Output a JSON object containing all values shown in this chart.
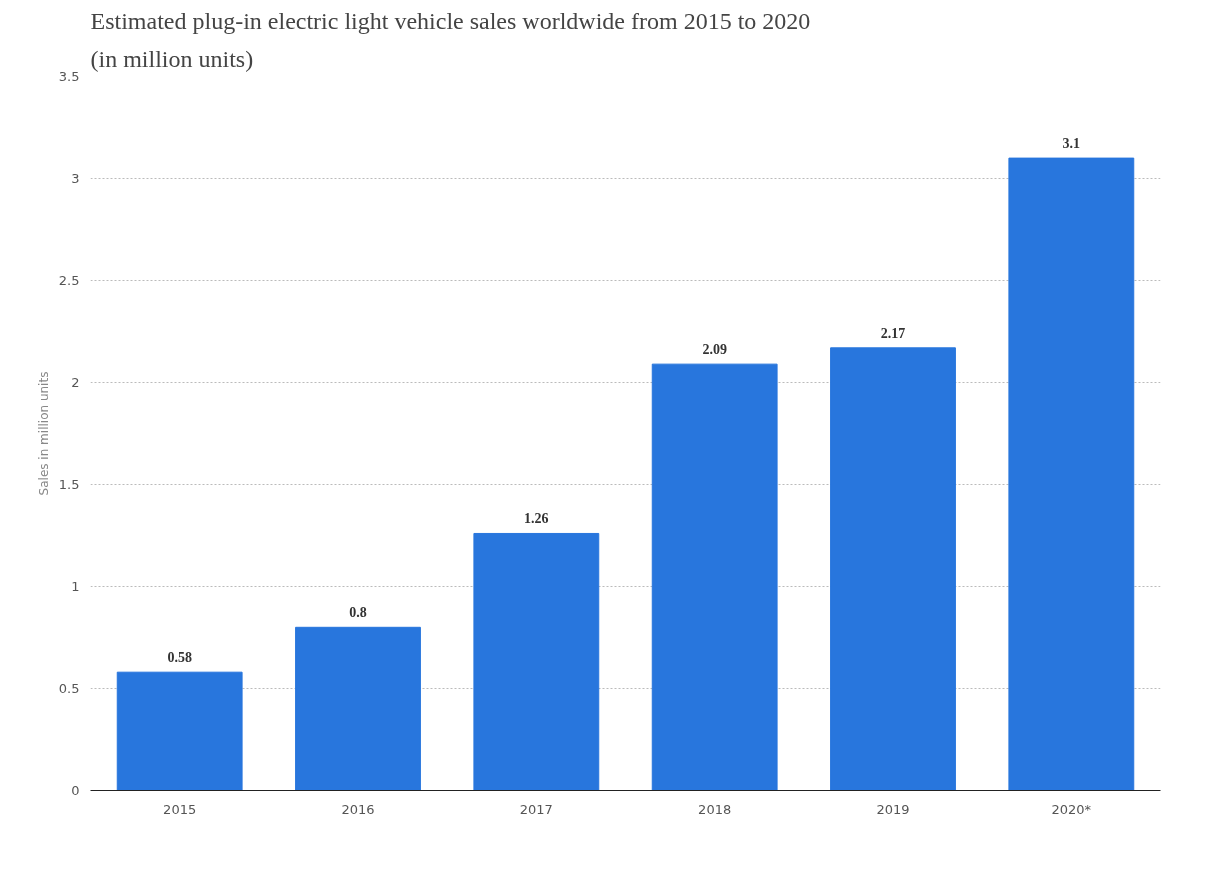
{
  "chart_data": {
    "type": "bar",
    "title": "Estimated plug-in electric light vehicle sales worldwide from 2015 to 2020",
    "subtitle": "(in million units)",
    "ylabel": "Sales in million units",
    "categories": [
      "2015",
      "2016",
      "2017",
      "2018",
      "2019",
      "2020*"
    ],
    "values": [
      0.58,
      0.8,
      1.26,
      2.09,
      2.17,
      3.1
    ],
    "color": "#2876dd",
    "ylim": [
      0,
      3.5
    ],
    "yticks": [
      0,
      0.5,
      1,
      1.5,
      2,
      2.5,
      3,
      3.5
    ],
    "grid": "y",
    "data_labels": true
  }
}
